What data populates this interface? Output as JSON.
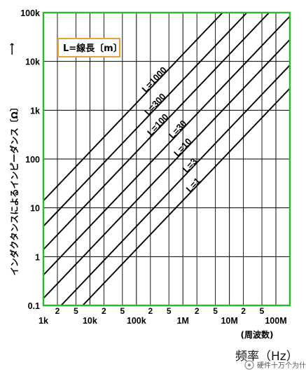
{
  "chart_data": {
    "type": "line",
    "x_scale": "log",
    "y_scale": "log",
    "xlim": [
      1000,
      200000000
    ],
    "ylim": [
      0.1,
      100000
    ],
    "grid": true,
    "x_major_ticks": [
      {
        "value": 1000,
        "label": "1k"
      },
      {
        "value": 10000,
        "label": "10k"
      },
      {
        "value": 100000,
        "label": "100k"
      },
      {
        "value": 1000000,
        "label": "1M"
      },
      {
        "value": 10000000,
        "label": "10M"
      },
      {
        "value": 100000000,
        "label": "100M"
      }
    ],
    "x_minor_ticks": [
      {
        "value": 2000,
        "label": "2"
      },
      {
        "value": 5000,
        "label": "5"
      },
      {
        "value": 20000,
        "label": "2"
      },
      {
        "value": 50000,
        "label": "5"
      },
      {
        "value": 200000,
        "label": "2"
      },
      {
        "value": 500000,
        "label": "5"
      },
      {
        "value": 2000000,
        "label": "2"
      },
      {
        "value": 5000000,
        "label": "5"
      },
      {
        "value": 20000000,
        "label": "2"
      },
      {
        "value": 50000000,
        "label": "5"
      }
    ],
    "y_ticks": [
      {
        "value": 0.1,
        "label": "0.1"
      },
      {
        "value": 1,
        "label": "1"
      },
      {
        "value": 10,
        "label": "10"
      },
      {
        "value": 100,
        "label": "100"
      },
      {
        "value": 1000,
        "label": "1k"
      },
      {
        "value": 10000,
        "label": "10k"
      },
      {
        "value": 100000,
        "label": "100k"
      }
    ],
    "ylabel": "インダクタンスによるインピーダンス〔Ω〕",
    "xlabel": "(周波数)",
    "xlabel_bottom": "频率（Hz）",
    "legend_box": "L=線長〔m〕",
    "series": [
      {
        "name": "L=1000",
        "x": [
          1000,
          60000000
        ],
        "y": [
          14,
          840000
        ]
      },
      {
        "name": "L=300",
        "x": [
          1000,
          200000000
        ],
        "y": [
          4.2,
          840000
        ]
      },
      {
        "name": "L=100",
        "x": [
          1000,
          200000000
        ],
        "y": [
          1.4,
          280000
        ]
      },
      {
        "name": "L=30",
        "x": [
          1000,
          200000000
        ],
        "y": [
          0.42,
          84000
        ]
      },
      {
        "name": "L=10",
        "x": [
          1000,
          200000000
        ],
        "y": [
          0.14,
          28000
        ]
      },
      {
        "name": "L=3",
        "x": [
          2400,
          200000000
        ],
        "y": [
          0.1,
          8400
        ]
      },
      {
        "name": "L=1",
        "x": [
          7000,
          200000000
        ],
        "y": [
          0.1,
          2800
        ]
      }
    ],
    "colors": {
      "frame": "#2db82d",
      "legend_border": "#e8a23a",
      "lines": "#000000"
    }
  },
  "watermark": "硬件十万个为什么"
}
